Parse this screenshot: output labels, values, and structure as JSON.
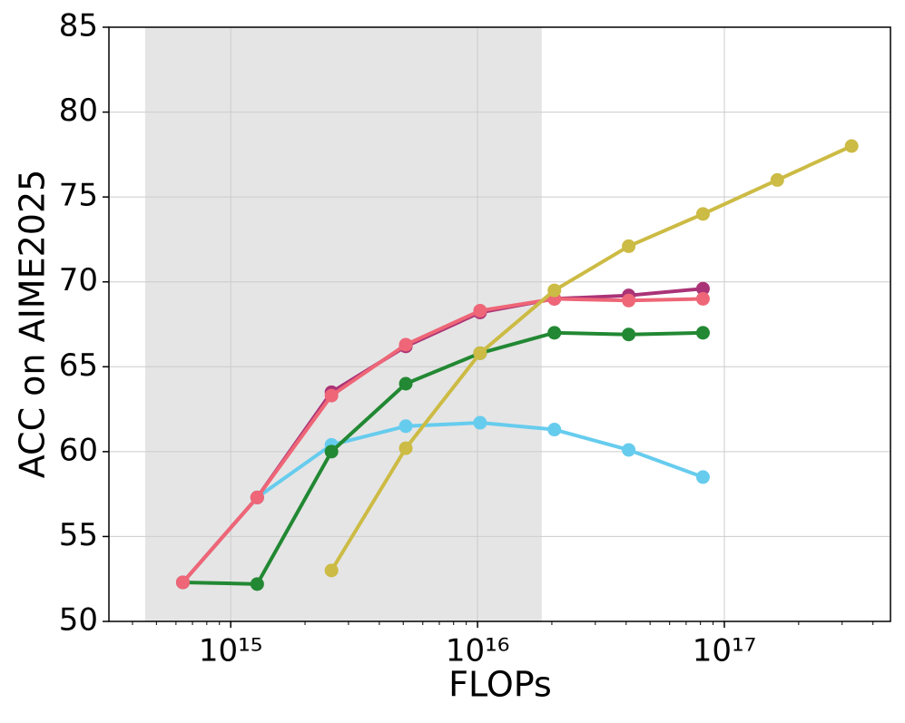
{
  "chart_data": {
    "type": "line",
    "x_label": "FLOPs",
    "y_label": "ACC on AIME2025",
    "xscale": "log",
    "x": [
      640000000000000.0,
      1280000000000000.0,
      2560000000000000.0,
      5120000000000000.0,
      1.024e+16,
      2.048e+16,
      4.096e+16,
      8.192e+16,
      1.6384e+17,
      3.2768e+17
    ],
    "series": [
      {
        "color": "#66ccee",
        "values": [
          null,
          57.3,
          60.4,
          61.5,
          61.7,
          61.3,
          60.1,
          58.5,
          null,
          null
        ]
      },
      {
        "color": "#228833",
        "values": [
          52.3,
          52.2,
          60.0,
          64.0,
          65.8,
          67.0,
          66.9,
          67.0,
          null,
          null
        ]
      },
      {
        "color": "#aa3377",
        "values": [
          52.3,
          57.3,
          63.5,
          66.2,
          68.2,
          69.0,
          69.2,
          69.6,
          null,
          null
        ]
      },
      {
        "color": "#ee6677",
        "values": [
          52.3,
          57.3,
          63.3,
          66.3,
          68.3,
          69.0,
          68.9,
          69.0,
          null,
          null
        ]
      },
      {
        "color": "#ccbb44",
        "values": [
          null,
          null,
          53.0,
          60.2,
          65.8,
          69.5,
          72.1,
          74.0,
          76.0,
          78.0
        ]
      }
    ],
    "xlim": [
      321000000000000.0,
      4.71e+17
    ],
    "ylim": [
      50,
      85
    ],
    "xticks": [
      {
        "value": 1000000000000000.0,
        "label": "10¹⁵"
      },
      {
        "value": 1e+16,
        "label": "10¹⁶"
      },
      {
        "value": 1e+17,
        "label": "10¹⁷"
      }
    ],
    "yticks": [
      50,
      55,
      60,
      65,
      70,
      75,
      80,
      85
    ],
    "grid": true,
    "minor_ticks": true,
    "shaded_region": {
      "x": [
        450000000000000.0,
        1.82e+16
      ],
      "color": "#e5e5e5"
    }
  }
}
